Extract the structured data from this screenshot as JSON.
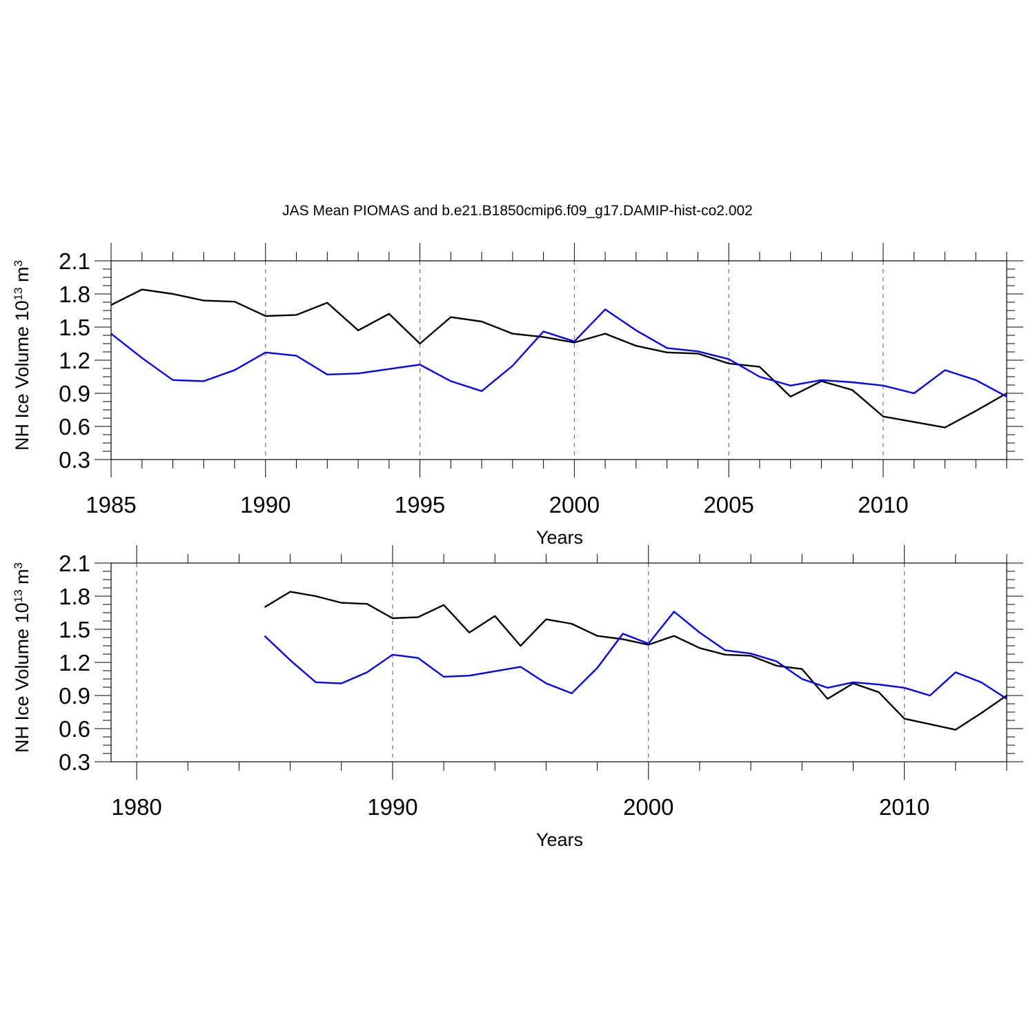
{
  "title": "JAS Mean PIOMAS and b.e21.B1850cmip6.f09_g17.DAMIP-hist-co2.002",
  "chart_data": [
    {
      "type": "line",
      "xlabel": "Years",
      "ylabel": "NH Ice Volume 10",
      "ylabel_exponent": "13",
      "ylabel_unit": " m",
      "ylabel_unit_exponent": "3",
      "xlim": [
        1985,
        2014
      ],
      "ylim": [
        0.3,
        2.1
      ],
      "xticks": [
        "1985",
        "1990",
        "1995",
        "2000",
        "2005",
        "2010"
      ],
      "yticks": [
        "0.3",
        "0.6",
        "0.9",
        "1.2",
        "1.5",
        "1.8",
        "2.1"
      ],
      "grid": "vertical dashed at major x ticks",
      "x": [
        1985,
        1986,
        1987,
        1988,
        1989,
        1990,
        1991,
        1992,
        1993,
        1994,
        1995,
        1996,
        1997,
        1998,
        1999,
        2000,
        2001,
        2002,
        2003,
        2004,
        2005,
        2006,
        2007,
        2008,
        2009,
        2010,
        2011,
        2012,
        2013,
        2014
      ],
      "series": [
        {
          "name": "PIOMAS",
          "color": "#000000",
          "values": [
            1.7,
            1.84,
            1.8,
            1.74,
            1.73,
            1.6,
            1.61,
            1.72,
            1.47,
            1.62,
            1.35,
            1.59,
            1.55,
            1.44,
            1.41,
            1.36,
            1.44,
            1.33,
            1.27,
            1.26,
            1.17,
            1.14,
            0.87,
            1.01,
            0.93,
            0.69,
            0.64,
            0.59,
            0.74,
            0.9
          ]
        },
        {
          "name": "b.e21.B1850cmip6.f09_g17.DAMIP-hist-co2.002",
          "color": "#0000ff",
          "values": [
            1.44,
            1.22,
            1.02,
            1.01,
            1.11,
            1.27,
            1.24,
            1.07,
            1.08,
            1.12,
            1.16,
            1.01,
            0.92,
            1.15,
            1.46,
            1.37,
            1.66,
            1.47,
            1.31,
            1.28,
            1.21,
            1.05,
            0.97,
            1.02,
            1.0,
            0.97,
            0.9,
            1.11,
            1.02,
            0.87
          ]
        }
      ]
    },
    {
      "type": "line",
      "xlabel": "Years",
      "ylabel": "NH Ice Volume 10",
      "ylabel_exponent": "13",
      "ylabel_unit": " m",
      "ylabel_unit_exponent": "3",
      "xlim": [
        1979,
        2014
      ],
      "ylim": [
        0.3,
        2.1
      ],
      "xticks": [
        "1980",
        "1990",
        "2000",
        "2010"
      ],
      "yticks": [
        "0.3",
        "0.6",
        "0.9",
        "1.2",
        "1.5",
        "1.8",
        "2.1"
      ],
      "grid": "vertical dashed at major x ticks",
      "x": [
        1985,
        1986,
        1987,
        1988,
        1989,
        1990,
        1991,
        1992,
        1993,
        1994,
        1995,
        1996,
        1997,
        1998,
        1999,
        2000,
        2001,
        2002,
        2003,
        2004,
        2005,
        2006,
        2007,
        2008,
        2009,
        2010,
        2011,
        2012,
        2013,
        2014
      ],
      "series": [
        {
          "name": "PIOMAS",
          "color": "#000000",
          "values": [
            1.7,
            1.84,
            1.8,
            1.74,
            1.73,
            1.6,
            1.61,
            1.72,
            1.47,
            1.62,
            1.35,
            1.59,
            1.55,
            1.44,
            1.41,
            1.36,
            1.44,
            1.33,
            1.27,
            1.26,
            1.17,
            1.14,
            0.87,
            1.01,
            0.93,
            0.69,
            0.64,
            0.59,
            0.74,
            0.9
          ]
        },
        {
          "name": "b.e21.B1850cmip6.f09_g17.DAMIP-hist-co2.002",
          "color": "#0000ff",
          "values": [
            1.44,
            1.22,
            1.02,
            1.01,
            1.11,
            1.27,
            1.24,
            1.07,
            1.08,
            1.12,
            1.16,
            1.01,
            0.92,
            1.15,
            1.46,
            1.37,
            1.66,
            1.47,
            1.31,
            1.28,
            1.21,
            1.05,
            0.97,
            1.02,
            1.0,
            0.97,
            0.9,
            1.11,
            1.02,
            0.87
          ]
        }
      ]
    }
  ]
}
